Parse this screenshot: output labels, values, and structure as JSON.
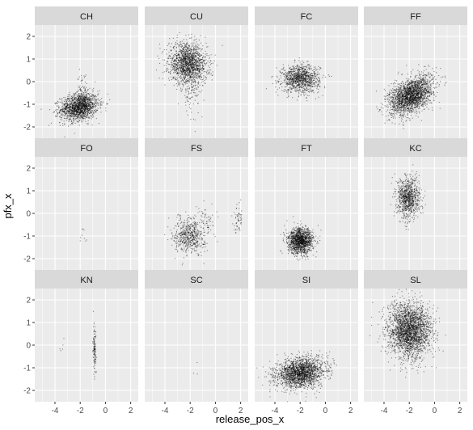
{
  "chart_data": {
    "type": "scatter",
    "layout": "facet_wrap",
    "ncol": 4,
    "xlabel": "release_pos_x",
    "ylabel": "pfx_x",
    "xlim": [
      -5.6,
      2.6
    ],
    "ylim": [
      -2.5,
      2.5
    ],
    "x_ticks": [
      -4,
      -2,
      0,
      2
    ],
    "y_ticks": [
      -2,
      -1,
      0,
      1,
      2
    ],
    "grid": true,
    "point_color": "#000000",
    "panel_background": "#ebebeb",
    "strip_background": "#d9d9d9",
    "grid_color": "#ffffff",
    "facets": [
      {
        "label": "CH",
        "clusters": [
          {
            "cx": -2.1,
            "cy": -1.1,
            "sx": 0.75,
            "sy": 0.3,
            "n": 1600,
            "rho": 0.2
          },
          {
            "cx": -1.9,
            "cy": -0.5,
            "sx": 0.2,
            "sy": 0.45,
            "n": 90,
            "rho": 0
          }
        ]
      },
      {
        "label": "CU",
        "clusters": [
          {
            "cx": -2.2,
            "cy": 0.8,
            "sx": 0.75,
            "sy": 0.45,
            "n": 1600,
            "rho": -0.1
          },
          {
            "cx": -2.0,
            "cy": -0.6,
            "sx": 0.35,
            "sy": 0.45,
            "n": 70,
            "rho": 0
          }
        ]
      },
      {
        "label": "FC",
        "clusters": [
          {
            "cx": -2.0,
            "cy": 0.15,
            "sx": 0.75,
            "sy": 0.3,
            "n": 1100,
            "rho": 0
          }
        ]
      },
      {
        "label": "FF",
        "clusters": [
          {
            "cx": -1.9,
            "cy": -0.6,
            "sx": 0.85,
            "sy": 0.42,
            "n": 2200,
            "rho": 0.45
          }
        ]
      },
      {
        "label": "FO",
        "clusters": [
          {
            "cx": -1.8,
            "cy": -1.1,
            "sx": 0.15,
            "sy": 0.3,
            "n": 9,
            "rho": 0
          }
        ]
      },
      {
        "label": "FS",
        "clusters": [
          {
            "cx": -2.1,
            "cy": -0.95,
            "sx": 0.6,
            "sy": 0.4,
            "n": 600,
            "rho": 0
          },
          {
            "cx": 1.8,
            "cy": -0.2,
            "sx": 0.2,
            "sy": 0.3,
            "n": 60,
            "rho": 0
          },
          {
            "cx": -0.7,
            "cy": -0.3,
            "sx": 0.4,
            "sy": 0.4,
            "n": 50,
            "rho": 0
          }
        ]
      },
      {
        "label": "FT",
        "clusters": [
          {
            "cx": -2.0,
            "cy": -1.2,
            "sx": 0.5,
            "sy": 0.28,
            "n": 1400,
            "rho": 0
          }
        ]
      },
      {
        "label": "KC",
        "clusters": [
          {
            "cx": -2.1,
            "cy": 0.7,
            "sx": 0.45,
            "sy": 0.45,
            "n": 900,
            "rho": 0
          }
        ]
      },
      {
        "label": "KN",
        "clusters": [
          {
            "cx": -0.9,
            "cy": -0.1,
            "sx": 0.06,
            "sy": 0.55,
            "n": 120,
            "rho": 0
          },
          {
            "cx": -3.4,
            "cy": -0.2,
            "sx": 0.25,
            "sy": 0.35,
            "n": 5,
            "rho": 0
          }
        ]
      },
      {
        "label": "SC",
        "clusters": [
          {
            "cx": -1.6,
            "cy": -1.2,
            "sx": 0.15,
            "sy": 0.2,
            "n": 3,
            "rho": 0
          }
        ]
      },
      {
        "label": "SI",
        "clusters": [
          {
            "cx": -2.0,
            "cy": -1.2,
            "sx": 0.95,
            "sy": 0.33,
            "n": 2000,
            "rho": 0.2
          }
        ]
      },
      {
        "label": "SL",
        "clusters": [
          {
            "cx": -2.0,
            "cy": 0.65,
            "sx": 0.85,
            "sy": 0.6,
            "n": 2600,
            "rho": 0
          }
        ]
      }
    ]
  }
}
